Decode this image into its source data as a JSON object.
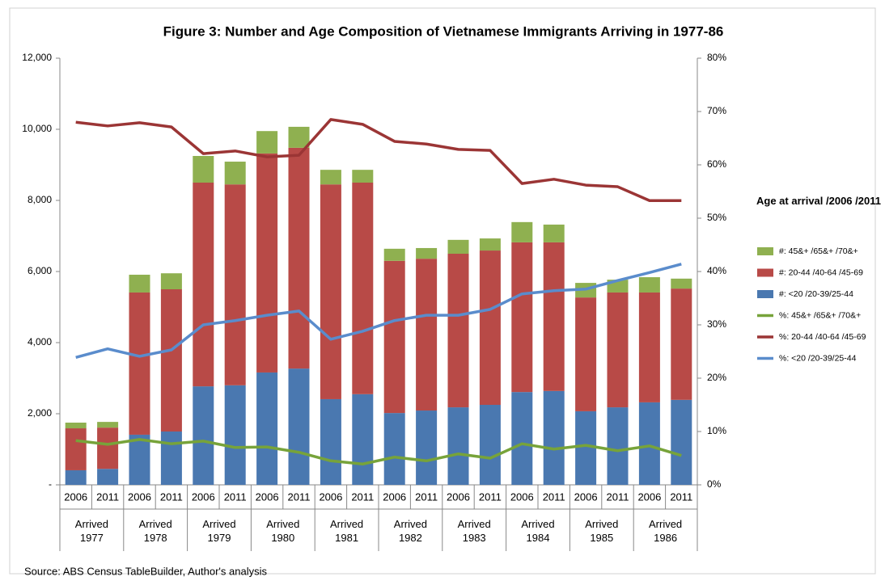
{
  "chart_data": {
    "type": "bar",
    "title": "Figure 3: Number and Age Composition of Vietnamese Immigrants Arriving  in 1977-86",
    "source": "Source: ABS Census TableBuilder, Author's analysis",
    "categories": [
      "2006",
      "2011",
      "2006",
      "2011",
      "2006",
      "2011",
      "2006",
      "2011",
      "2006",
      "2011",
      "2006",
      "2011",
      "2006",
      "2011",
      "2006",
      "2011",
      "2006",
      "2011",
      "2006",
      "2011"
    ],
    "groups": [
      "Arrived 1977",
      "Arrived 1978",
      "Arrived 1979",
      "Arrived 1980",
      "Arrived 1981",
      "Arrived 1982",
      "Arrived 1983",
      "Arrived 1984",
      "Arrived 1985",
      "Arrived 1986"
    ],
    "legend_title": "Age at arrival /2006 /2011",
    "series": [
      {
        "name": "#: 45&+ /65&+ /70&+",
        "type": "bar",
        "color": "#8fb050",
        "values": [
          160,
          160,
          500,
          450,
          750,
          640,
          630,
          590,
          410,
          360,
          340,
          300,
          390,
          340,
          570,
          500,
          410,
          360,
          430,
          280
        ]
      },
      {
        "name": "#: 20-44 /40-64 /45-69",
        "type": "bar",
        "color": "#b84a47",
        "values": [
          1180,
          1160,
          4000,
          4000,
          5730,
          5650,
          6160,
          6210,
          6040,
          5950,
          4280,
          4270,
          4320,
          4340,
          4210,
          4180,
          3200,
          3230,
          3090,
          3130
        ]
      },
      {
        "name": "#: <20 /20-39/25-44",
        "type": "bar",
        "color": "#4a78b0",
        "values": [
          410,
          450,
          1410,
          1500,
          2770,
          2800,
          3160,
          3270,
          2410,
          2550,
          2020,
          2090,
          2180,
          2250,
          2610,
          2640,
          2070,
          2180,
          2320,
          2390
        ]
      },
      {
        "name": "%: 45&+ /65&+ /70&+",
        "type": "line",
        "axis": "y2",
        "color": "#77a33a",
        "values": [
          8.3,
          7.6,
          8.5,
          7.7,
          8.2,
          7.0,
          7.1,
          6.1,
          4.5,
          3.9,
          5.2,
          4.5,
          5.8,
          5.0,
          7.7,
          6.7,
          7.4,
          6.4,
          7.3,
          5.5
        ]
      },
      {
        "name": "%: 20-44 /40-64 /45-69",
        "type": "line",
        "axis": "y2",
        "color": "#9b3535",
        "values": [
          68.0,
          67.3,
          67.9,
          67.1,
          62.1,
          62.6,
          61.5,
          61.8,
          68.5,
          67.6,
          64.4,
          63.9,
          62.9,
          62.7,
          56.5,
          57.3,
          56.2,
          55.9,
          53.3,
          53.3
        ]
      },
      {
        "name": "%: <20 /20-39/25-44",
        "type": "line",
        "axis": "y2",
        "color": "#5a8ccc",
        "values": [
          23.9,
          25.5,
          24.1,
          25.3,
          30.0,
          30.8,
          31.8,
          32.6,
          27.3,
          28.8,
          30.8,
          31.8,
          31.8,
          32.9,
          35.8,
          36.4,
          36.7,
          38.3,
          39.8,
          41.4
        ]
      }
    ],
    "ylim": [
      0,
      12000
    ],
    "yticks": [
      {
        "value": 0,
        "label": "-"
      },
      {
        "value": 2000,
        "label": "2,000"
      },
      {
        "value": 4000,
        "label": "4,000"
      },
      {
        "value": 6000,
        "label": "6,000"
      },
      {
        "value": 8000,
        "label": "8,000"
      },
      {
        "value": 10000,
        "label": "10,000"
      },
      {
        "value": 12000,
        "label": "12,000"
      }
    ],
    "y2lim": [
      0,
      80
    ],
    "y2ticks": [
      {
        "value": 0,
        "label": "0%"
      },
      {
        "value": 10,
        "label": "10%"
      },
      {
        "value": 20,
        "label": "20%"
      },
      {
        "value": 30,
        "label": "30%"
      },
      {
        "value": 40,
        "label": "40%"
      },
      {
        "value": 50,
        "label": "50%"
      },
      {
        "value": 60,
        "label": "60%"
      },
      {
        "value": 70,
        "label": "70%"
      },
      {
        "value": 80,
        "label": "80%"
      }
    ],
    "legend": "right"
  }
}
